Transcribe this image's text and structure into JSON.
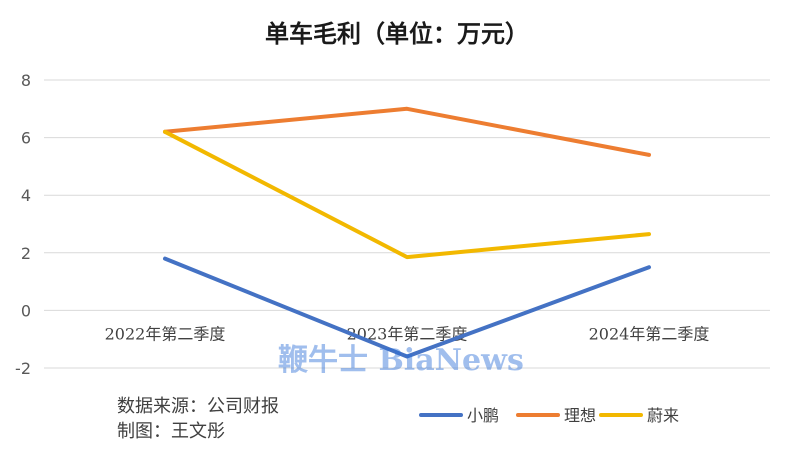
{
  "chart_data": {
    "type": "line",
    "title": "单车毛利（单位：万元）",
    "categories": [
      "2022年第二季度",
      "2023年第二季度",
      "2024年第二季度"
    ],
    "series": [
      {
        "name": "小鹏",
        "color": "#4472c4",
        "values": [
          1.8,
          -1.6,
          1.5
        ]
      },
      {
        "name": "理想",
        "color": "#ed7d31",
        "values": [
          6.2,
          7.0,
          5.4
        ]
      },
      {
        "name": "蔚来",
        "color": "#f2b800",
        "values": [
          6.2,
          1.85,
          2.65
        ]
      }
    ],
    "ylim": [
      -2,
      8
    ],
    "yticks": [
      -2,
      0,
      2,
      4,
      6,
      8
    ],
    "grid": true,
    "legend": "bottom-right",
    "xlabel": "",
    "ylabel": ""
  },
  "notes": {
    "source": "数据来源：公司财报",
    "author": "制图：王文彤"
  },
  "watermark": "鞭牛士 BiaNews"
}
